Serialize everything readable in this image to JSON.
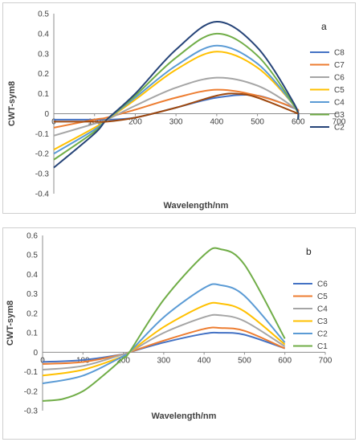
{
  "chart_data": [
    {
      "type": "line",
      "panel_label": "a",
      "xlabel": "Wavelength/nm",
      "ylabel": "CWT-sym8",
      "xlim": [
        0,
        700
      ],
      "ylim": [
        -0.4,
        0.5
      ],
      "xticks": [
        0,
        100,
        200,
        300,
        400,
        500,
        600,
        700
      ],
      "yticks": [
        -0.4,
        -0.3,
        -0.2,
        -0.1,
        0,
        0.1,
        0.2,
        0.3,
        0.4,
        0.5
      ],
      "grid": "none",
      "legend_position": "right",
      "series": [
        {
          "name": "C8",
          "color": "#4472c4",
          "x": [
            0,
            100,
            130,
            200,
            300,
            400,
            500,
            600
          ],
          "y": [
            -0.03,
            -0.03,
            -0.03,
            -0.02,
            0.03,
            0.08,
            0.09,
            0.02
          ]
        },
        {
          "name": "C7",
          "color": "#ed7d31",
          "x": [
            0,
            100,
            130,
            200,
            300,
            400,
            500,
            590,
            600
          ],
          "y": [
            -0.07,
            -0.03,
            -0.02,
            0.02,
            0.08,
            0.12,
            0.09,
            0.03,
            0.01
          ]
        },
        {
          "name": "C6",
          "color": "#a5a5a5",
          "x": [
            0,
            100,
            130,
            200,
            300,
            400,
            500,
            590,
            600
          ],
          "y": [
            -0.11,
            -0.05,
            -0.03,
            0.04,
            0.13,
            0.18,
            0.14,
            0.03,
            -0.01
          ]
        },
        {
          "name": "C5",
          "color": "#ffc000",
          "x": [
            0,
            100,
            130,
            200,
            300,
            400,
            500,
            590,
            600
          ],
          "y": [
            -0.18,
            -0.07,
            -0.03,
            0.07,
            0.22,
            0.31,
            0.23,
            0.04,
            -0.02
          ]
        },
        {
          "name": "C4",
          "color": "#5b9bd5",
          "x": [
            0,
            100,
            130,
            200,
            300,
            400,
            500,
            590,
            600
          ],
          "y": [
            -0.2,
            -0.08,
            -0.03,
            0.08,
            0.24,
            0.34,
            0.25,
            0.04,
            -0.02
          ]
        },
        {
          "name": "C3",
          "color": "#70ad47",
          "x": [
            0,
            100,
            130,
            200,
            300,
            400,
            500,
            590,
            600
          ],
          "y": [
            -0.23,
            -0.09,
            -0.03,
            0.09,
            0.28,
            0.4,
            0.29,
            0.04,
            -0.03
          ]
        },
        {
          "name": "C2",
          "color": "#264478",
          "x": [
            0,
            100,
            130,
            200,
            300,
            400,
            500,
            590,
            600
          ],
          "y": [
            -0.27,
            -0.1,
            -0.03,
            0.1,
            0.32,
            0.46,
            0.33,
            0.05,
            -0.03
          ]
        },
        {
          "name": "",
          "color": "#9e480e",
          "x": [
            0,
            100,
            130,
            200,
            300,
            400,
            450,
            500,
            600
          ],
          "y": [
            -0.04,
            -0.04,
            -0.04,
            -0.02,
            0.03,
            0.09,
            0.1,
            0.08,
            0.0
          ]
        }
      ]
    },
    {
      "type": "line",
      "panel_label": "b",
      "xlabel": "Wavelength/nm",
      "ylabel": "CWT-sym8",
      "xlim": [
        0,
        700
      ],
      "ylim": [
        -0.3,
        0.6
      ],
      "xticks": [
        0,
        100,
        200,
        300,
        400,
        500,
        600,
        700
      ],
      "yticks": [
        -0.3,
        -0.2,
        -0.1,
        0,
        0.1,
        0.2,
        0.3,
        0.4,
        0.5,
        0.6
      ],
      "grid": "none",
      "legend_position": "right",
      "series": [
        {
          "name": "C6",
          "color": "#4472c4",
          "x": [
            0,
            100,
            200,
            215,
            300,
            400,
            440,
            500,
            600
          ],
          "y": [
            -0.05,
            -0.04,
            -0.01,
            0.0,
            0.05,
            0.095,
            0.1,
            0.09,
            0.02
          ]
        },
        {
          "name": "C5",
          "color": "#ed7d31",
          "x": [
            0,
            100,
            200,
            215,
            300,
            400,
            440,
            500,
            600
          ],
          "y": [
            -0.06,
            -0.05,
            -0.01,
            0.0,
            0.06,
            0.12,
            0.125,
            0.11,
            0.02
          ]
        },
        {
          "name": "C4",
          "color": "#a5a5a5",
          "x": [
            0,
            100,
            200,
            215,
            300,
            400,
            440,
            500,
            600
          ],
          "y": [
            -0.09,
            -0.07,
            -0.01,
            0.0,
            0.1,
            0.18,
            0.19,
            0.16,
            0.03
          ]
        },
        {
          "name": "C3",
          "color": "#ffc000",
          "x": [
            0,
            100,
            200,
            215,
            300,
            400,
            440,
            500,
            600
          ],
          "y": [
            -0.12,
            -0.09,
            -0.02,
            0.0,
            0.13,
            0.24,
            0.25,
            0.21,
            0.04
          ]
        },
        {
          "name": "C2",
          "color": "#5b9bd5",
          "x": [
            0,
            100,
            200,
            215,
            300,
            400,
            440,
            500,
            600
          ],
          "y": [
            -0.16,
            -0.12,
            -0.02,
            0.0,
            0.18,
            0.33,
            0.345,
            0.29,
            0.05
          ]
        },
        {
          "name": "C1",
          "color": "#70ad47",
          "x": [
            0,
            50,
            100,
            150,
            200,
            215,
            300,
            400,
            440,
            500,
            600
          ],
          "y": [
            -0.25,
            -0.24,
            -0.2,
            -0.12,
            -0.03,
            0.0,
            0.27,
            0.5,
            0.53,
            0.45,
            0.07
          ]
        }
      ]
    }
  ]
}
